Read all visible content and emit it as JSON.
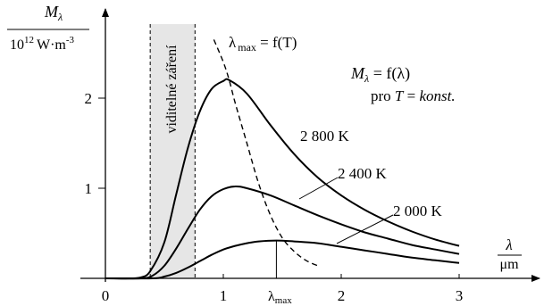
{
  "chart_data": {
    "type": "line",
    "x_axis": {
      "range": [
        0,
        3.6
      ],
      "ticks": [
        0,
        1,
        2,
        3
      ],
      "label_num": "λ",
      "label_den": "μm",
      "marker_label": "λ",
      "marker_label_sub": "max"
    },
    "y_axis": {
      "range": [
        0,
        2.8
      ],
      "ticks": [
        1,
        2
      ],
      "label_num": "M",
      "label_num_sub": "λ",
      "label_den_pow_base": "10",
      "label_den_pow_exp": "12",
      "label_den_unit": "W·m",
      "label_den_unit_exp": "-3"
    },
    "visible_band": {
      "x_range": [
        0.38,
        0.76
      ],
      "label": "viditelné záření"
    },
    "series": [
      {
        "name": "2 800 K",
        "x": [
          0.0,
          0.2,
          0.3,
          0.38,
          0.5,
          0.6,
          0.7,
          0.8,
          0.9,
          1.0,
          1.05,
          1.2,
          1.4,
          1.6,
          1.8,
          2.0,
          2.2,
          2.4,
          2.6,
          2.8,
          3.0
        ],
        "y": [
          0.0,
          0.0,
          0.01,
          0.08,
          0.4,
          0.93,
          1.45,
          1.85,
          2.1,
          2.19,
          2.2,
          2.05,
          1.7,
          1.38,
          1.12,
          0.92,
          0.76,
          0.63,
          0.52,
          0.43,
          0.36
        ]
      },
      {
        "name": "2 400 K",
        "x": [
          0.0,
          0.3,
          0.4,
          0.5,
          0.6,
          0.7,
          0.8,
          0.9,
          1.0,
          1.1,
          1.2,
          1.4,
          1.6,
          1.8,
          2.0,
          2.2,
          2.4,
          2.6,
          2.8,
          3.0
        ],
        "y": [
          0.0,
          0.0,
          0.03,
          0.14,
          0.33,
          0.55,
          0.76,
          0.91,
          0.99,
          1.02,
          1.0,
          0.92,
          0.81,
          0.7,
          0.6,
          0.51,
          0.44,
          0.37,
          0.32,
          0.27
        ]
      },
      {
        "name": "2 000 K",
        "x": [
          0.0,
          0.4,
          0.5,
          0.6,
          0.7,
          0.8,
          0.9,
          1.0,
          1.1,
          1.2,
          1.3,
          1.45,
          1.6,
          1.8,
          2.0,
          2.2,
          2.4,
          2.6,
          2.8,
          3.0
        ],
        "y": [
          0.0,
          0.0,
          0.02,
          0.06,
          0.12,
          0.19,
          0.26,
          0.32,
          0.36,
          0.39,
          0.41,
          0.42,
          0.41,
          0.39,
          0.35,
          0.31,
          0.27,
          0.23,
          0.2,
          0.17
        ]
      }
    ],
    "peak_locus": {
      "label_main": "λ",
      "label_sub": "max",
      "label_eq": " = f(T)",
      "x": [
        0.92,
        1.0,
        1.05,
        1.1,
        1.2,
        1.3,
        1.4,
        1.5,
        1.6,
        1.7,
        1.8
      ],
      "y": [
        2.65,
        2.4,
        2.2,
        1.95,
        1.5,
        1.05,
        0.7,
        0.45,
        0.3,
        0.2,
        0.14
      ]
    },
    "lambda_max_marker_x": 1.45,
    "annotations": {
      "formula_M": "M",
      "formula_M_sub": "λ",
      "formula_rest": " = f(λ)",
      "condition_pre": "pro ",
      "condition_var": "T",
      "condition_eq": " = ",
      "condition_val": "konst."
    }
  }
}
